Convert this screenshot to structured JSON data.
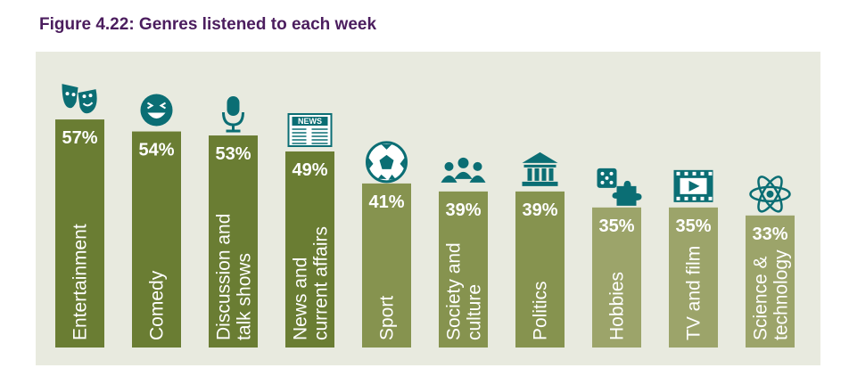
{
  "figure_title": "Figure 4.22: Genres listened to each week",
  "chart_data": {
    "type": "bar",
    "title": "Figure 4.22: Genres listened to each week",
    "categories": [
      [
        "Entertainment"
      ],
      [
        "Comedy"
      ],
      [
        "Discussion and",
        "talk shows"
      ],
      [
        "News and",
        "current affairs"
      ],
      [
        "Sport"
      ],
      [
        "Society and",
        "culture"
      ],
      [
        "Politics"
      ],
      [
        "Hobbies"
      ],
      [
        "TV and film"
      ],
      [
        "Science &",
        "technology"
      ]
    ],
    "values": [
      57,
      54,
      53,
      49,
      41,
      39,
      39,
      35,
      35,
      33
    ],
    "value_labels": [
      "57%",
      "54%",
      "53%",
      "49%",
      "41%",
      "39%",
      "39%",
      "35%",
      "35%",
      "33%"
    ],
    "icons": [
      "theatre-masks-icon",
      "laughing-face-icon",
      "microphone-icon",
      "newspaper-icon",
      "football-icon",
      "people-group-icon",
      "government-building-icon",
      "dice-puzzle-icon",
      "film-play-icon",
      "atom-icon"
    ],
    "icon_text": {
      "newspaper": "NEWS"
    },
    "colors": {
      "bars": [
        "#6a7d33",
        "#6a7d33",
        "#6a7d33",
        "#6a7d33",
        "#86934f",
        "#86934f",
        "#86934f",
        "#9ca46a",
        "#9ca46a",
        "#9ca46a"
      ],
      "icons": "#0b6e74",
      "title": "#4b1d5e",
      "background": "#e8eadf"
    },
    "grid": false,
    "legend": "none"
  }
}
